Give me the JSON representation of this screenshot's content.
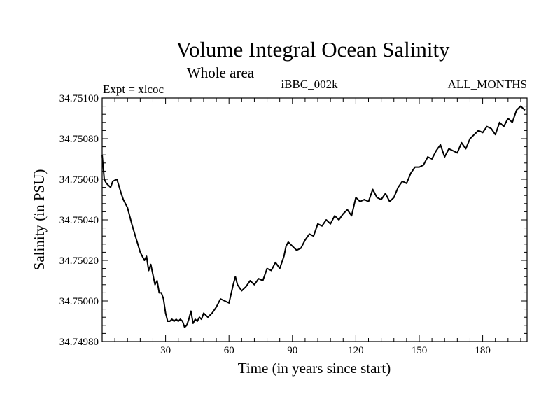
{
  "chart_data": {
    "type": "line",
    "title": "Volume Integral Ocean Salinity",
    "subtitle": "Whole area",
    "annotations": {
      "left": "Expt = xlcoc",
      "center": "iBBC_002k",
      "right": "ALL_MONTHS"
    },
    "xlabel": "Time (in years since start)",
    "ylabel": "Salinity (in PSU)",
    "xlim": [
      0,
      201
    ],
    "ylim": [
      34.7498,
      34.751
    ],
    "x_ticks": [
      30,
      60,
      90,
      120,
      150,
      180
    ],
    "x_tick_labels": [
      "30",
      "60",
      "90",
      "120",
      "150",
      "180"
    ],
    "y_ticks": [
      34.7498,
      34.75,
      34.7502,
      34.7504,
      34.7506,
      34.7508,
      34.751
    ],
    "y_tick_labels": [
      "34.74980",
      "34.75000",
      "34.75020",
      "34.75040",
      "34.75060",
      "34.75080",
      "34.75100"
    ],
    "grid": false,
    "series": [
      {
        "name": "Salinity",
        "x": [
          0,
          1,
          2,
          4,
          5,
          7,
          9,
          10,
          12,
          14,
          16,
          18,
          20,
          21,
          22,
          23,
          24,
          25,
          26,
          27,
          28,
          29,
          30,
          31,
          32,
          33,
          34,
          35,
          36,
          37,
          38,
          39,
          40,
          41,
          42,
          43,
          44,
          45,
          46,
          47,
          48,
          50,
          52,
          54,
          56,
          58,
          60,
          62,
          63,
          64,
          66,
          68,
          70,
          72,
          74,
          76,
          78,
          80,
          82,
          84,
          86,
          87,
          88,
          90,
          92,
          94,
          96,
          98,
          100,
          102,
          104,
          106,
          108,
          110,
          112,
          114,
          116,
          118,
          120,
          122,
          124,
          126,
          128,
          130,
          132,
          134,
          136,
          138,
          140,
          142,
          144,
          146,
          148,
          150,
          152,
          154,
          156,
          158,
          160,
          162,
          164,
          166,
          168,
          170,
          172,
          174,
          176,
          178,
          180,
          182,
          184,
          186,
          188,
          190,
          192,
          194,
          196,
          198,
          200
        ],
        "values": [
          34.75072,
          34.7506,
          34.75058,
          34.75056,
          34.75059,
          34.7506,
          34.75053,
          34.7505,
          34.75046,
          34.75038,
          34.75031,
          34.75024,
          34.7502,
          34.75022,
          34.75015,
          34.75018,
          34.75013,
          34.75008,
          34.7501,
          34.75004,
          34.75004,
          34.75001,
          34.74994,
          34.7499,
          34.7499,
          34.74991,
          34.7499,
          34.74991,
          34.7499,
          34.74991,
          34.7499,
          34.74987,
          34.74988,
          34.74991,
          34.74995,
          34.74989,
          34.74991,
          34.7499,
          34.74992,
          34.74991,
          34.74994,
          34.74992,
          34.74994,
          34.74997,
          34.75001,
          34.75,
          34.74999,
          34.75008,
          34.75012,
          34.75008,
          34.75005,
          34.75007,
          34.7501,
          34.75008,
          34.75011,
          34.7501,
          34.75016,
          34.75015,
          34.75019,
          34.75016,
          34.75022,
          34.75027,
          34.75029,
          34.75027,
          34.75025,
          34.75026,
          34.7503,
          34.75033,
          34.75032,
          34.75038,
          34.75037,
          34.7504,
          34.75038,
          34.75042,
          34.7504,
          34.75043,
          34.75045,
          34.75042,
          34.75051,
          34.75049,
          34.7505,
          34.75049,
          34.75055,
          34.75051,
          34.7505,
          34.75053,
          34.75049,
          34.75051,
          34.75056,
          34.75059,
          34.75058,
          34.75063,
          34.75066,
          34.75066,
          34.75067,
          34.75071,
          34.7507,
          34.75074,
          34.75077,
          34.75071,
          34.75075,
          34.75074,
          34.75073,
          34.75078,
          34.75075,
          34.7508,
          34.75082,
          34.75084,
          34.75083,
          34.75086,
          34.75085,
          34.75082,
          34.75088,
          34.75086,
          34.7509,
          34.75088,
          34.75094,
          34.75096,
          34.75094
        ]
      }
    ]
  }
}
